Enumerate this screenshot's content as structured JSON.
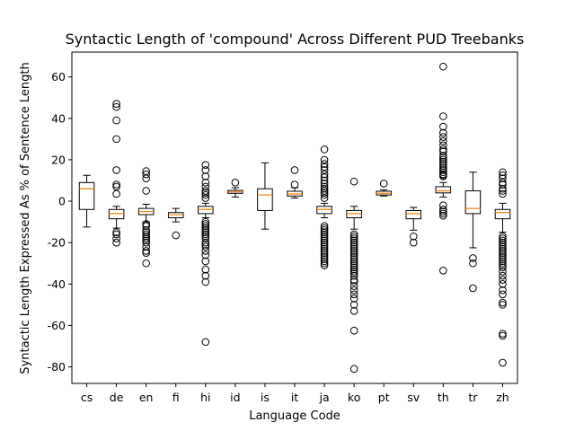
{
  "chart_data": {
    "type": "boxplot",
    "title": "Syntactic Length of 'compound' Across Different PUD Treebanks",
    "xlabel": "Language Code",
    "ylabel": "Syntactic Length Expressed As % of Sentence Length",
    "ylim": [
      -88,
      72
    ],
    "yticks": [
      -80,
      -60,
      -40,
      -20,
      0,
      20,
      40,
      60
    ],
    "grid": false,
    "colors": {
      "box": "#000000",
      "median": "#ff7f0e",
      "flier": "#000000",
      "background": "#ffffff"
    },
    "categories": [
      "cs",
      "de",
      "en",
      "fi",
      "hi",
      "id",
      "is",
      "it",
      "ja",
      "ko",
      "pt",
      "sv",
      "th",
      "tr",
      "zh"
    ],
    "boxes": [
      {
        "label": "cs",
        "whislo": -12.5,
        "q1": -4,
        "med": 6,
        "q3": 9,
        "whishi": 12.5,
        "fliers": []
      },
      {
        "label": "de",
        "whislo": -13,
        "q1": -8.5,
        "med": -6,
        "q3": -4,
        "whishi": -2.5,
        "fliers": [
          47,
          45.5,
          39,
          30,
          15,
          8,
          7,
          3.5,
          -15,
          -16,
          -18,
          -20
        ]
      },
      {
        "label": "en",
        "whislo": -10,
        "q1": -6.5,
        "med": -5,
        "q3": -3.5,
        "whishi": -1.5,
        "fliers": [
          14.5,
          13,
          11,
          5,
          -11,
          -12,
          -14,
          -15,
          -16,
          -17,
          -18,
          -19,
          -20,
          -22,
          -24,
          -25,
          -30
        ]
      },
      {
        "label": "fi",
        "whislo": -10,
        "q1": -8,
        "med": -6.5,
        "q3": -5.5,
        "whishi": -3.5,
        "fliers": [
          -16.5
        ]
      },
      {
        "label": "hi",
        "whislo": -8,
        "q1": -6,
        "med": -4,
        "q3": -2.5,
        "whishi": -1,
        "fliers": [
          17.5,
          15,
          12,
          9,
          7,
          5,
          4,
          3,
          1.5,
          -10,
          -11,
          -12,
          -13,
          -14,
          -15,
          -16,
          -17,
          -18,
          -20,
          -21,
          -22,
          -24,
          -26,
          -29,
          -33,
          -36,
          -39,
          -68
        ]
      },
      {
        "label": "id",
        "whislo": 2,
        "q1": 3.8,
        "med": 4.5,
        "q3": 5.2,
        "whishi": 6.5,
        "fliers": [
          9
        ]
      },
      {
        "label": "is",
        "whislo": -13.5,
        "q1": -4.5,
        "med": 3,
        "q3": 6,
        "whishi": 18.5,
        "fliers": []
      },
      {
        "label": "it",
        "whislo": 1.5,
        "q1": 2.5,
        "med": 3.5,
        "q3": 4.8,
        "whishi": 6.5,
        "fliers": [
          15,
          8
        ]
      },
      {
        "label": "ja",
        "whislo": -8,
        "q1": -6,
        "med": -4,
        "q3": -2.5,
        "whishi": -1,
        "fliers": [
          25,
          20,
          18,
          16.5,
          15,
          13,
          11.5,
          10,
          8.5,
          7,
          6,
          5,
          4,
          3,
          1.5,
          -12,
          -13,
          -14,
          -15,
          -16,
          -17,
          -18,
          -19,
          -20,
          -21,
          -22,
          -23,
          -24,
          -25,
          -26,
          -27,
          -28,
          -29,
          -30,
          -31
        ]
      },
      {
        "label": "ko",
        "whislo": -13.5,
        "q1": -8,
        "med": -6,
        "q3": -4.5,
        "whishi": -2.5,
        "fliers": [
          9.5,
          -16,
          -17,
          -18,
          -19,
          -20,
          -21,
          -22,
          -23,
          -24,
          -25,
          -26,
          -27,
          -28,
          -29,
          -30,
          -31,
          -32,
          -33,
          -34,
          -35,
          -36,
          -38,
          -39,
          -41,
          -43,
          -45,
          -47,
          -50,
          -53,
          -62.5,
          -81
        ]
      },
      {
        "label": "pt",
        "whislo": 2.5,
        "q1": 3,
        "med": 3.8,
        "q3": 4.8,
        "whishi": 5.5,
        "fliers": [
          8.5
        ]
      },
      {
        "label": "sv",
        "whislo": -14,
        "q1": -8.5,
        "med": -6,
        "q3": -4.5,
        "whishi": -3,
        "fliers": [
          -17,
          -20
        ]
      },
      {
        "label": "th",
        "whislo": 2,
        "q1": 4,
        "med": 5,
        "q3": 7,
        "whishi": 9,
        "fliers": [
          65,
          41,
          36,
          33,
          31,
          29,
          27,
          25,
          24,
          22,
          21,
          20,
          19,
          18,
          17,
          16,
          15,
          14,
          13,
          12.5,
          12,
          -2,
          -4,
          -5,
          -6,
          -7,
          -33.5
        ]
      },
      {
        "label": "tr",
        "whislo": -22.5,
        "q1": -6,
        "med": -3.5,
        "q3": 5,
        "whishi": 14,
        "fliers": [
          -27.5,
          -30,
          -42
        ]
      },
      {
        "label": "zh",
        "whislo": -15,
        "q1": -8.5,
        "med": -5.5,
        "q3": -4,
        "whishi": -1,
        "fliers": [
          14,
          12.5,
          11,
          9,
          8,
          6,
          5,
          3.5,
          -17,
          -18,
          -19,
          -20,
          -21,
          -22,
          -23,
          -24,
          -25,
          -26,
          -27,
          -28,
          -29,
          -30,
          -31,
          -32,
          -34,
          -36,
          -38,
          -40,
          -43,
          -45,
          -49,
          -50,
          -64,
          -65,
          -78
        ]
      }
    ]
  }
}
